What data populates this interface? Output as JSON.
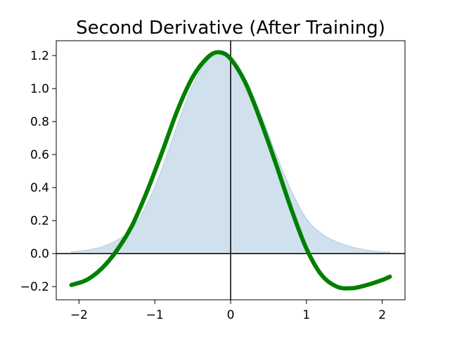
{
  "chart_data": {
    "type": "line",
    "title": "Second Derivative (After Training)",
    "xlabel": "",
    "ylabel": "",
    "xlim": [
      -2.3,
      2.3
    ],
    "ylim": [
      -0.28,
      1.29
    ],
    "x_ticks": [
      -2,
      -1,
      0,
      1,
      2
    ],
    "x_tick_labels": [
      "−2",
      "−1",
      "0",
      "1",
      "2"
    ],
    "y_ticks": [
      -0.2,
      0.0,
      0.2,
      0.4,
      0.6,
      0.8,
      1.0,
      1.2
    ],
    "y_tick_labels": [
      "−0.2",
      "0.0",
      "0.2",
      "0.4",
      "0.6",
      "0.8",
      "1.0",
      "1.2"
    ],
    "grid": false,
    "zero_lines": true,
    "series": [
      {
        "kind": "line",
        "color": "#008000",
        "x": [
          -2.1,
          -1.9,
          -1.7,
          -1.5,
          -1.3,
          -1.1,
          -0.9,
          -0.7,
          -0.5,
          -0.3,
          -0.15,
          0.0,
          0.2,
          0.4,
          0.6,
          0.8,
          1.0,
          1.2,
          1.4,
          1.6,
          1.8,
          2.0,
          2.1
        ],
        "y": [
          -0.19,
          -0.16,
          -0.09,
          0.02,
          0.17,
          0.38,
          0.62,
          0.87,
          1.07,
          1.19,
          1.22,
          1.18,
          1.03,
          0.8,
          0.54,
          0.27,
          0.03,
          -0.13,
          -0.2,
          -0.21,
          -0.19,
          -0.16,
          -0.14
        ]
      },
      {
        "kind": "area",
        "color": "#bcd4e6",
        "x": [
          -2.1,
          -1.9,
          -1.7,
          -1.5,
          -1.3,
          -1.1,
          -0.9,
          -0.7,
          -0.5,
          -0.3,
          -0.15,
          0.0,
          0.2,
          0.4,
          0.6,
          0.8,
          1.0,
          1.2,
          1.4,
          1.6,
          1.8,
          2.0,
          2.1
        ],
        "y": [
          0.01,
          0.02,
          0.04,
          0.08,
          0.15,
          0.3,
          0.52,
          0.78,
          1.02,
          1.17,
          1.2,
          1.18,
          1.05,
          0.84,
          0.6,
          0.38,
          0.21,
          0.12,
          0.07,
          0.04,
          0.02,
          0.01,
          0.01
        ]
      }
    ]
  }
}
